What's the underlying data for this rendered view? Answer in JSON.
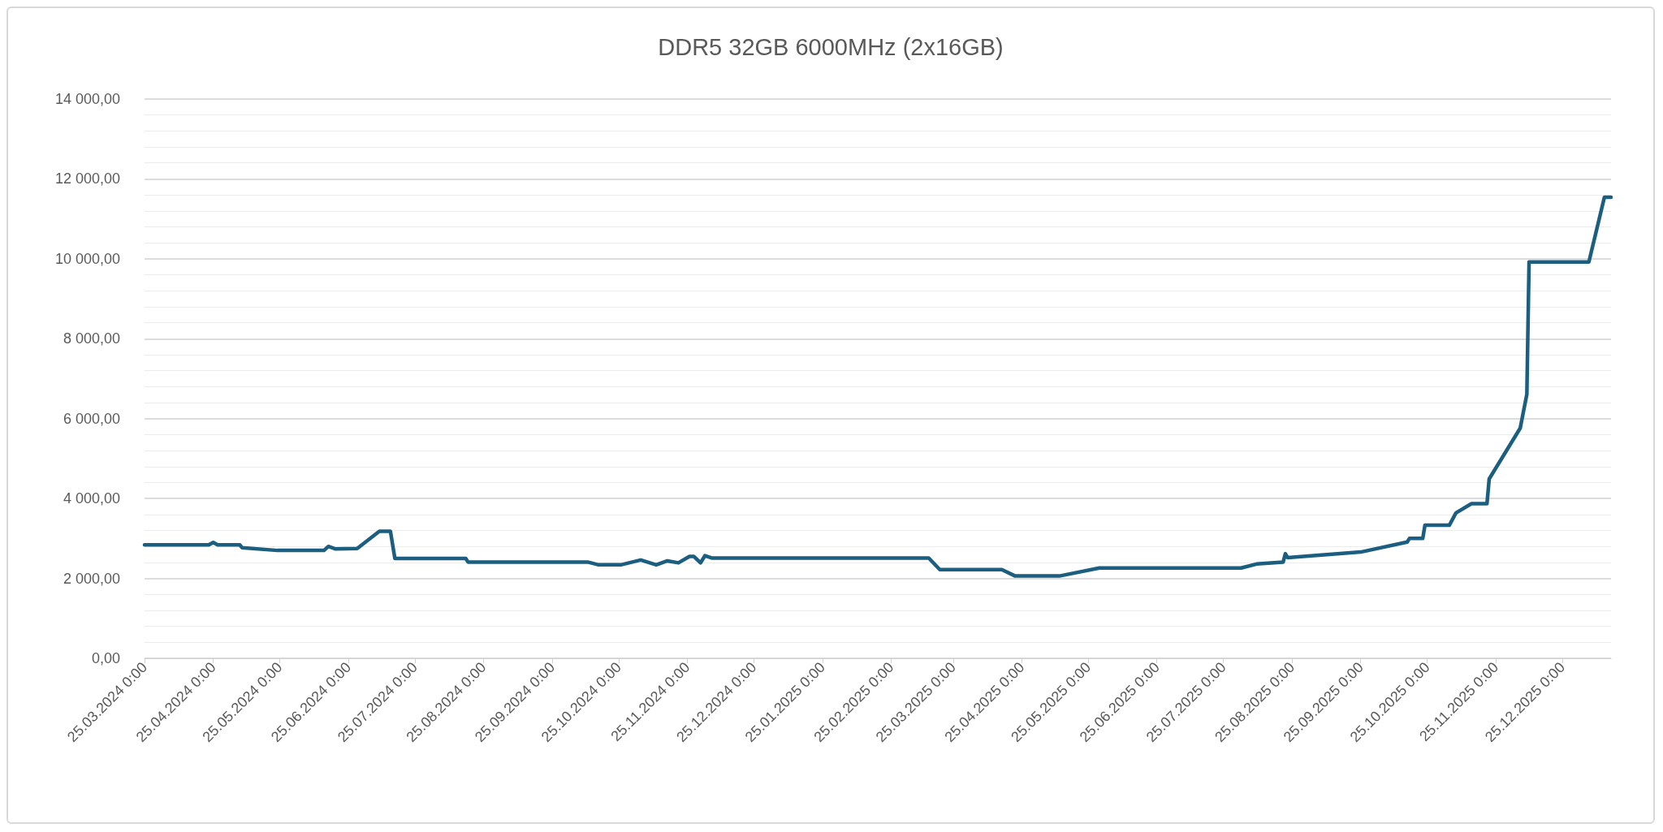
{
  "chart_data": {
    "type": "line",
    "title": "DDR5 32GB 6000MHz (2x16GB)",
    "x": [
      "2024-03-25",
      "2024-04-23",
      "2024-04-25",
      "2024-04-27",
      "2024-05-07",
      "2024-05-08",
      "2024-05-24",
      "2024-06-14",
      "2024-06-16",
      "2024-06-19",
      "2024-06-29",
      "2024-07-09",
      "2024-07-14",
      "2024-07-16",
      "2024-08-17",
      "2024-08-18",
      "2024-10-11",
      "2024-10-16",
      "2024-10-26",
      "2024-11-04",
      "2024-11-11",
      "2024-11-16",
      "2024-11-21",
      "2024-11-26",
      "2024-11-28",
      "2024-12-01",
      "2024-12-03",
      "2024-12-06",
      "2025-03-14",
      "2025-03-19",
      "2025-04-16",
      "2025-04-22",
      "2025-05-12",
      "2025-05-30",
      "2025-08-02",
      "2025-08-09",
      "2025-08-21",
      "2025-08-22",
      "2025-08-23",
      "2025-09-25",
      "2025-10-16",
      "2025-10-17",
      "2025-10-23",
      "2025-10-24",
      "2025-11-04",
      "2025-11-07",
      "2025-11-14",
      "2025-11-21",
      "2025-11-22",
      "2025-12-06",
      "2025-12-09",
      "2025-12-10",
      "2026-01-06",
      "2026-01-13",
      "2026-01-16"
    ],
    "series": [
      {
        "color": "#1b5e80",
        "values": [
          2840,
          2840,
          2900,
          2840,
          2840,
          2770,
          2700,
          2700,
          2800,
          2740,
          2750,
          3180,
          3180,
          2500,
          2500,
          2410,
          2410,
          2340,
          2340,
          2460,
          2340,
          2440,
          2390,
          2550,
          2550,
          2390,
          2570,
          2510,
          2510,
          2220,
          2220,
          2060,
          2060,
          2260,
          2260,
          2360,
          2410,
          2620,
          2520,
          2660,
          2910,
          3000,
          3000,
          3330,
          3330,
          3640,
          3870,
          3870,
          4490,
          5760,
          6610,
          9920,
          9920,
          11540,
          11540
        ]
      }
    ],
    "xlim": [
      "2024-03-25",
      "2026-01-16"
    ],
    "xticks": [
      {
        "value": "2024-03-25",
        "label": "25.03.2024 0:00"
      },
      {
        "value": "2024-04-25",
        "label": "25.04.2024 0:00"
      },
      {
        "value": "2024-05-25",
        "label": "25.05.2024 0:00"
      },
      {
        "value": "2024-06-25",
        "label": "25.06.2024 0:00"
      },
      {
        "value": "2024-07-25",
        "label": "25.07.2024 0:00"
      },
      {
        "value": "2024-08-25",
        "label": "25.08.2024 0:00"
      },
      {
        "value": "2024-09-25",
        "label": "25.09.2024 0:00"
      },
      {
        "value": "2024-10-25",
        "label": "25.10.2024 0:00"
      },
      {
        "value": "2024-11-25",
        "label": "25.11.2024 0:00"
      },
      {
        "value": "2024-12-25",
        "label": "25.12.2024 0:00"
      },
      {
        "value": "2025-01-25",
        "label": "25.01.2025 0:00"
      },
      {
        "value": "2025-02-25",
        "label": "25.02.2025 0:00"
      },
      {
        "value": "2025-03-25",
        "label": "25.03.2025 0:00"
      },
      {
        "value": "2025-04-25",
        "label": "25.04.2025 0:00"
      },
      {
        "value": "2025-05-25",
        "label": "25.05.2025 0:00"
      },
      {
        "value": "2025-06-25",
        "label": "25.06.2025 0:00"
      },
      {
        "value": "2025-07-25",
        "label": "25.07.2025 0:00"
      },
      {
        "value": "2025-08-25",
        "label": "25.08.2025 0:00"
      },
      {
        "value": "2025-09-25",
        "label": "25.09.2025 0:00"
      },
      {
        "value": "2025-10-25",
        "label": "25.10.2025 0:00"
      },
      {
        "value": "2025-11-25",
        "label": "25.11.2025 0:00"
      },
      {
        "value": "2025-12-25",
        "label": "25.12.2025 0:00"
      }
    ],
    "ylim": [
      0,
      14000
    ],
    "yticks": [
      {
        "value": 0,
        "label": "0,00"
      },
      {
        "value": 2000,
        "label": "2 000,00"
      },
      {
        "value": 4000,
        "label": "4 000,00"
      },
      {
        "value": 6000,
        "label": "6 000,00"
      },
      {
        "value": 8000,
        "label": "8 000,00"
      },
      {
        "value": 10000,
        "label": "10 000,00"
      },
      {
        "value": 12000,
        "label": "12 000,00"
      },
      {
        "value": 14000,
        "label": "14 000,00"
      }
    ],
    "grid": "y",
    "marker": "none",
    "line_style": "solid"
  }
}
